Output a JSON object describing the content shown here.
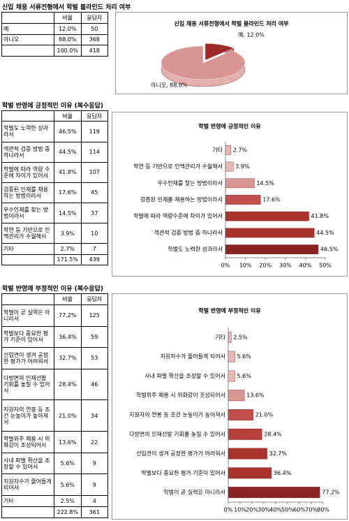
{
  "sections": [
    {
      "heading": "신입 채용 서류전형에서 학벌 블라인드 처리 여부",
      "table": {
        "columns": [
          "비율",
          "응답자"
        ],
        "rows": [
          {
            "label": "예",
            "ratio": "12.0%",
            "count": "50"
          },
          {
            "label": "아니오",
            "ratio": "88.0%",
            "count": "368"
          },
          {
            "ratio": "100.0%",
            "count": "418"
          }
        ]
      }
    },
    {
      "heading": "학벌 반영에 긍정적인 이유 (복수응답)",
      "table": {
        "columns": [
          "비율",
          "응답자"
        ],
        "rows": [
          {
            "label": "학벌도 노력한 성과라서",
            "ratio": "46.5%",
            "count": "119"
          },
          {
            "label": "객관적 검증 방법 중 하나라서",
            "ratio": "44.5%",
            "count": "114"
          },
          {
            "label": "학벌에 따라 역량 수준에 차이가 있어서",
            "ratio": "41.8%",
            "count": "107"
          },
          {
            "label": "검증된 인재를 채용하는 방법이라서",
            "ratio": "17.6%",
            "count": "45"
          },
          {
            "label": "우수인재를 찾는 방법이라서",
            "ratio": "14.5%",
            "count": "37"
          },
          {
            "label": "학연 등 기반으로 인맥관리가 수월해서",
            "ratio": "3.9%",
            "count": "10"
          },
          {
            "label": "기타",
            "ratio": "2.7%",
            "count": "7"
          },
          {
            "ratio": "171.5%",
            "count": "439"
          }
        ]
      }
    },
    {
      "heading": "학벌 반영에 부정적인 이유 (복수응답)",
      "table": {
        "columns": [
          "비율",
          "응답자"
        ],
        "rows": [
          {
            "label": "학벌이 곧 실력은 아니라서",
            "ratio": "77.2%",
            "count": "125"
          },
          {
            "label": "학벌보다 중요한 평가 기준이 있어서",
            "ratio": "36.4%",
            "count": "59"
          },
          {
            "label": "선입견이 생겨 공정한 평가가 어려워서",
            "ratio": "32.7%",
            "count": "53"
          },
          {
            "label": "다방면의 인재선발 기회를 놓칠 수 있어서",
            "ratio": "28.4%",
            "count": "46"
          },
          {
            "label": "지원자의 연봉 등 조건 눈높이가 높아져서",
            "ratio": "21.0%",
            "count": "34"
          },
          {
            "label": "학벌위주 채용 시 위화감이 조성되어서",
            "ratio": "13.6%",
            "count": "22"
          },
          {
            "label": "사내 파벌 확산을 조장할 수 있어서",
            "ratio": "5.6%",
            "count": "9"
          },
          {
            "label": "지원자수가 줄어들게 되어서",
            "ratio": "5.6%",
            "count": "9"
          },
          {
            "label": "기타",
            "ratio": "2.5%",
            "count": "4"
          },
          {
            "ratio": "222.8%",
            "count": "361"
          }
        ]
      }
    }
  ],
  "chart_data": [
    {
      "type": "pie",
      "title": "신입 채용 서류전형에서 학벌 블라인드 처리 여부",
      "categories": [
        "예",
        "아니오"
      ],
      "values": [
        12.0,
        88.0
      ],
      "value_labels": [
        "예, 12.0%",
        "아니오, 88.0%"
      ],
      "colors": [
        "#9b2a2a",
        "#d99594"
      ]
    },
    {
      "type": "hbar",
      "title": "학벌 반영에 긍정적인 이유",
      "categories": [
        "기타",
        "학연 등 기반으로 인맥관리가 수월해서",
        "우수인재를 찾는 방법이라서",
        "검증된 인재를 채용하는 방법이라서",
        "학벌에 따라 역량수준에 차이가 있어서",
        "객관적 검증 방법 중 하나라서",
        "학벌도 노력한 성과라서"
      ],
      "values": [
        2.7,
        3.9,
        14.5,
        17.6,
        41.8,
        44.5,
        46.5
      ],
      "value_labels": [
        "2.7%",
        "3.9%",
        "14.5%",
        "17.6%",
        "41.8%",
        "44.5%",
        "46.5%"
      ],
      "colors": [
        "#e6b9b8",
        "#e6b9b8",
        "#d99594",
        "#c0504d",
        "#a8332f",
        "#a8332f",
        "#8b2525"
      ],
      "xlim": [
        0,
        50
      ],
      "xticks": [
        {
          "value": 0,
          "label": "0%"
        },
        {
          "value": 10,
          "label": "10%"
        },
        {
          "value": 20,
          "label": "20%"
        },
        {
          "value": 30,
          "label": "30%"
        },
        {
          "value": 40,
          "label": "40%"
        },
        {
          "value": 50,
          "label": "50%"
        }
      ]
    },
    {
      "type": "hbar",
      "title": "학벌 반영에 부정적인 이유",
      "categories": [
        "기타",
        "지원자수가 줄어들게 되어서",
        "사내 파벌 확산을 조장할 수 있어서",
        "학벌위주 채용 시 위화감이 조성되어서",
        "지원자의 연봉 등 조건 눈높이가 높아져서",
        "다방면의 인재선발 기회를 놓칠 수 있어서",
        "선입견이 생겨 공정한 평가가 어려워서",
        "학벌보다 중요한 평가 기준이 있어서",
        "학벌이 곧 실력은 아니라서"
      ],
      "values": [
        2.5,
        5.6,
        5.6,
        13.6,
        21.0,
        28.4,
        32.7,
        36.4,
        77.2
      ],
      "value_labels": [
        "2.5%",
        "5.6%",
        "5.6%",
        "13.6%",
        "21.0%",
        "28.4%",
        "32.7%",
        "36.4%",
        "77.2%"
      ],
      "colors": [
        "#e6b9b8",
        "#e6b9b8",
        "#e6b9b8",
        "#d99594",
        "#c0504d",
        "#b5403c",
        "#a8332f",
        "#a8332f",
        "#8b2525"
      ],
      "xlim": [
        0,
        80
      ],
      "xticks": [
        {
          "value": 0,
          "label": "0%"
        },
        {
          "value": 10,
          "label": "10%"
        },
        {
          "value": 20,
          "label": "20%"
        },
        {
          "value": 30,
          "label": "30%"
        },
        {
          "value": 40,
          "label": "40%"
        },
        {
          "value": 50,
          "label": "50%"
        },
        {
          "value": 60,
          "label": "60%"
        },
        {
          "value": 70,
          "label": "70%"
        },
        {
          "value": 80,
          "label": "80%"
        }
      ]
    }
  ]
}
